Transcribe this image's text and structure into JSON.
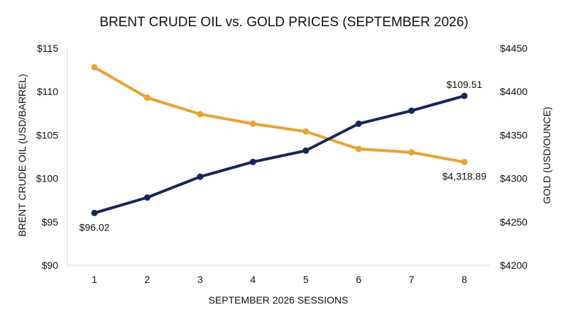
{
  "chart_data": {
    "type": "line",
    "title": "BRENT CRUDE OIL vs. GOLD PRICES (SEPTEMBER 2026)",
    "xlabel": "SEPTEMBER 2026 SESSIONS",
    "ylabel_left": "BRENT CRUDE OIL (USD/BARREL)",
    "ylabel_right": "GOLD (USD/OUNCE)",
    "x": [
      1,
      2,
      3,
      4,
      5,
      6,
      7,
      8
    ],
    "x_tick_labels": [
      "1",
      "2",
      "3",
      "4",
      "5",
      "6",
      "7",
      "8"
    ],
    "ylim_left": [
      90,
      115
    ],
    "ylim_right": [
      4200,
      4450
    ],
    "left_tick_labels": [
      "$90",
      "$95",
      "$100",
      "$105",
      "$110",
      "$115"
    ],
    "right_tick_labels": [
      "$4200",
      "$4250",
      "$4300",
      "$4350",
      "$4400",
      "$4450"
    ],
    "grid": false,
    "series": [
      {
        "axis": "left",
        "color": "#14275a",
        "values": [
          96.02,
          97.8,
          100.2,
          101.9,
          103.2,
          106.3,
          107.8,
          109.51
        ]
      },
      {
        "axis": "right",
        "color": "#e8a331",
        "values": [
          4428,
          4393,
          4374,
          4363,
          4354,
          4334,
          4330,
          4318.89
        ]
      }
    ],
    "data_labels": [
      {
        "series": 0,
        "index": 0,
        "text": "$96.02",
        "placement": "below"
      },
      {
        "series": 0,
        "index": 7,
        "text": "$109.51",
        "placement": "above"
      },
      {
        "series": 1,
        "index": 7,
        "text": "$4,318.89",
        "placement": "below"
      }
    ]
  }
}
